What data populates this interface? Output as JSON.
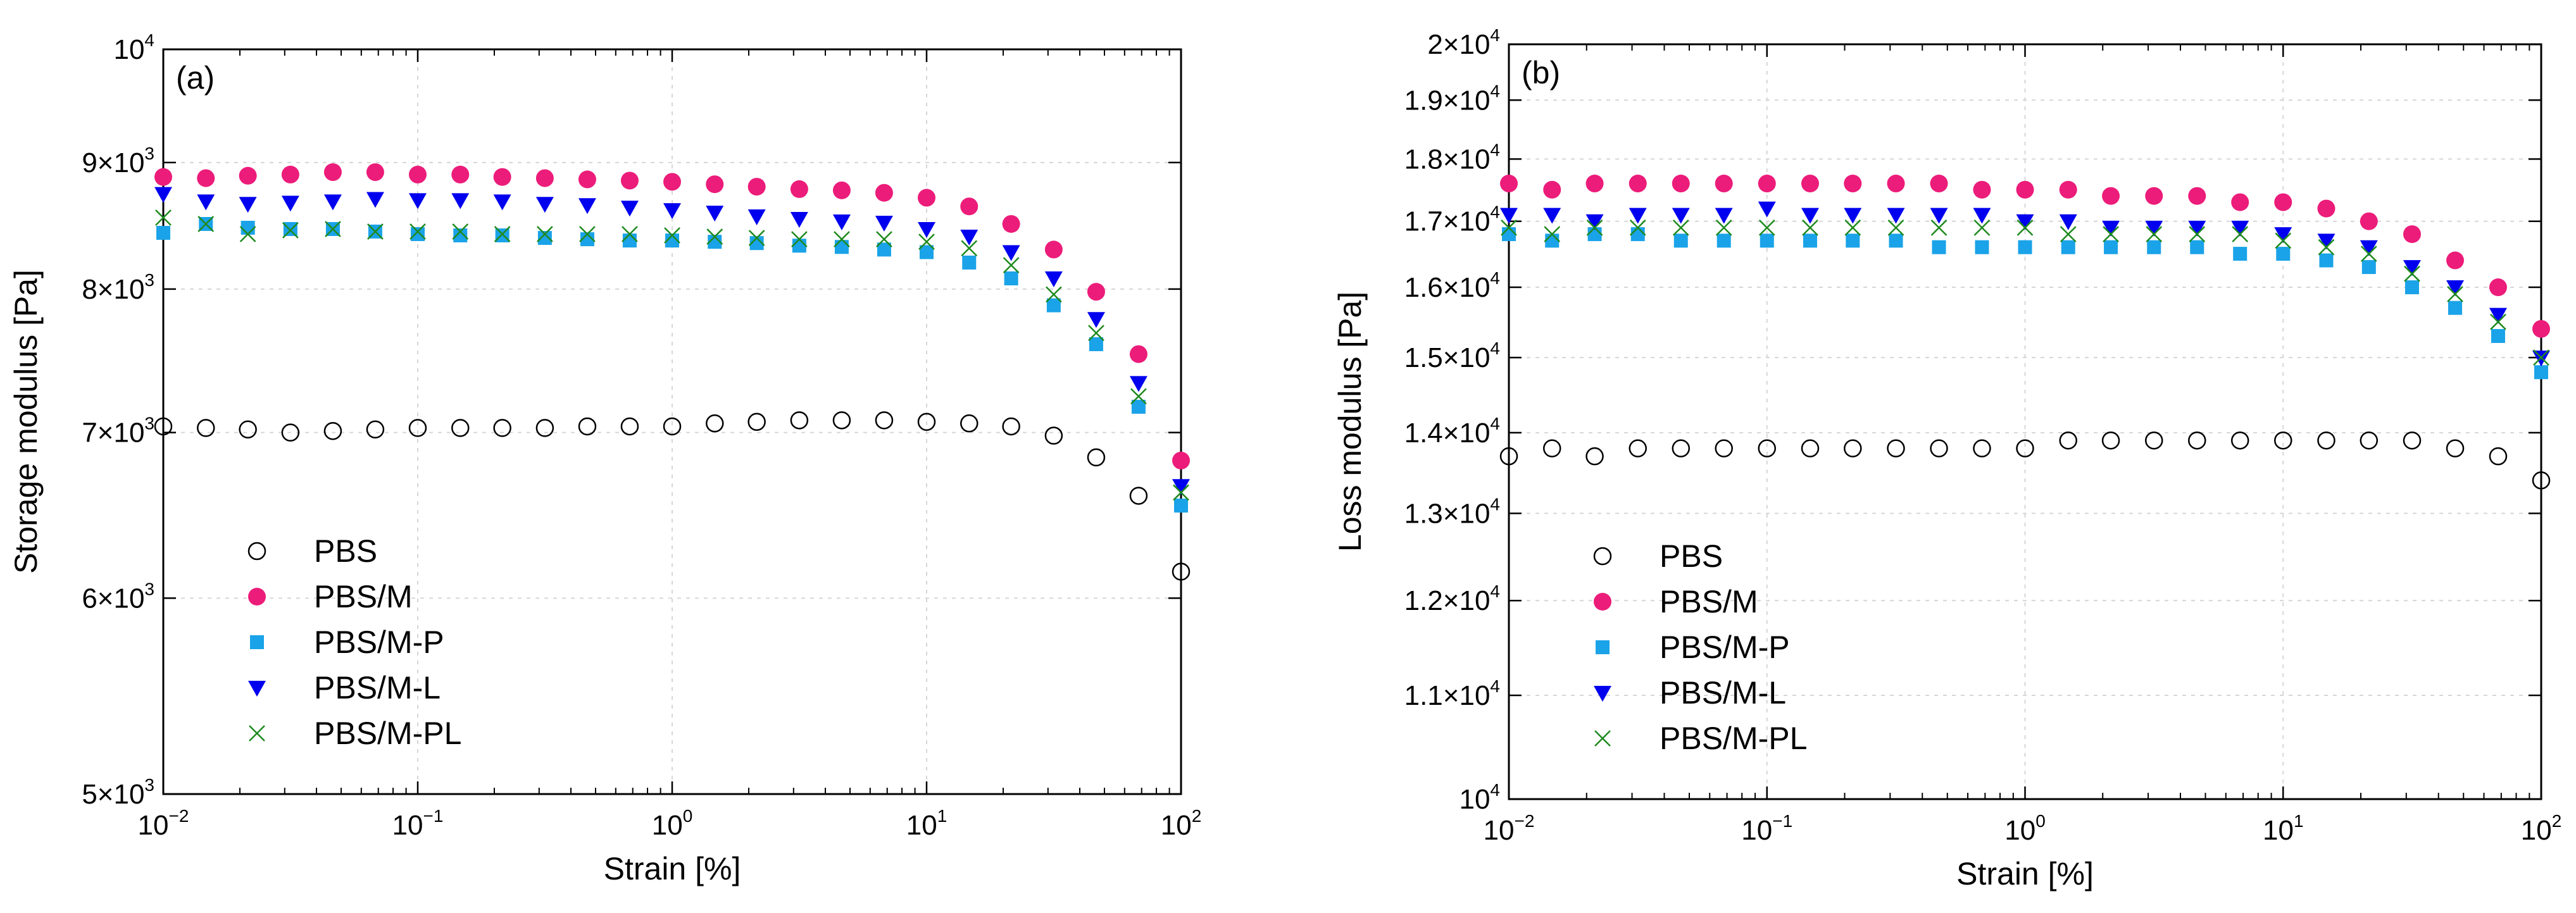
{
  "chart_data": [
    {
      "type": "scatter",
      "panel_label": "(a)",
      "xlabel": "Strain [%]",
      "ylabel": "Storage modulus [Pa]",
      "xscale": "log",
      "yscale": "log",
      "xlim": [
        0.01,
        100
      ],
      "ylim": [
        5000,
        10000
      ],
      "x_ticks": [
        {
          "value": 0.01,
          "base": "10",
          "exp": "−2"
        },
        {
          "value": 0.1,
          "base": "10",
          "exp": "−1"
        },
        {
          "value": 1,
          "base": "10",
          "exp": "0"
        },
        {
          "value": 10,
          "base": "10",
          "exp": "1"
        },
        {
          "value": 100,
          "base": "10",
          "exp": "2"
        }
      ],
      "y_ticks": [
        {
          "value": 5000,
          "base": "5×10",
          "exp": "3"
        },
        {
          "value": 6000,
          "base": "6×10",
          "exp": "3"
        },
        {
          "value": 7000,
          "base": "7×10",
          "exp": "3"
        },
        {
          "value": 8000,
          "base": "8×10",
          "exp": "3"
        },
        {
          "value": 9000,
          "base": "9×10",
          "exp": "3"
        },
        {
          "value": 10000,
          "base": "10",
          "exp": "4"
        }
      ],
      "grid": true,
      "legend_position": "bottom-left",
      "x": [
        0.01,
        0.0147,
        0.0215,
        0.0316,
        0.0464,
        0.0681,
        0.1,
        0.147,
        0.215,
        0.316,
        0.464,
        0.681,
        1,
        1.47,
        2.15,
        3.16,
        4.64,
        6.81,
        10,
        14.7,
        21.5,
        31.6,
        46.4,
        68.1,
        100
      ],
      "series": [
        {
          "name": "PBS",
          "marker": "circle-open",
          "color": "#000000",
          "values": [
            7040,
            7030,
            7020,
            7000,
            7010,
            7020,
            7030,
            7030,
            7030,
            7030,
            7040,
            7040,
            7040,
            7060,
            7070,
            7080,
            7080,
            7080,
            7070,
            7060,
            7040,
            6980,
            6840,
            6600,
            6150
          ]
        },
        {
          "name": "PBS/M",
          "marker": "circle-filled",
          "color": "#ec1c7a",
          "values": [
            8880,
            8870,
            8890,
            8900,
            8920,
            8920,
            8900,
            8900,
            8880,
            8870,
            8860,
            8850,
            8840,
            8820,
            8800,
            8780,
            8770,
            8750,
            8710,
            8640,
            8500,
            8300,
            7980,
            7530,
            6820
          ]
        },
        {
          "name": "PBS/M-P",
          "marker": "square",
          "color": "#1aa3e8",
          "values": [
            8430,
            8500,
            8470,
            8460,
            8460,
            8440,
            8420,
            8410,
            8410,
            8390,
            8380,
            8370,
            8370,
            8360,
            8350,
            8330,
            8320,
            8300,
            8280,
            8200,
            8080,
            7880,
            7600,
            7170,
            6540
          ]
        },
        {
          "name": "PBS/M-L",
          "marker": "triangle-down",
          "color": "#0000ee",
          "values": [
            8740,
            8680,
            8660,
            8670,
            8680,
            8700,
            8690,
            8690,
            8680,
            8660,
            8650,
            8630,
            8610,
            8590,
            8560,
            8540,
            8520,
            8510,
            8460,
            8400,
            8280,
            8080,
            7780,
            7330,
            6660
          ]
        },
        {
          "name": "PBS/M-PL",
          "marker": "x",
          "color": "#1e8a1e",
          "values": [
            8550,
            8500,
            8420,
            8450,
            8460,
            8440,
            8440,
            8440,
            8420,
            8420,
            8420,
            8420,
            8410,
            8400,
            8390,
            8380,
            8380,
            8380,
            8360,
            8310,
            8180,
            7960,
            7680,
            7240,
            6620
          ]
        }
      ]
    },
    {
      "type": "scatter",
      "panel_label": "(b)",
      "xlabel": "Strain [%]",
      "ylabel": "Loss modulus [Pa]",
      "xscale": "log",
      "yscale": "log",
      "xlim": [
        0.01,
        100
      ],
      "ylim": [
        10000,
        20000
      ],
      "x_ticks": [
        {
          "value": 0.01,
          "base": "10",
          "exp": "−2"
        },
        {
          "value": 0.1,
          "base": "10",
          "exp": "−1"
        },
        {
          "value": 1,
          "base": "10",
          "exp": "0"
        },
        {
          "value": 10,
          "base": "10",
          "exp": "1"
        },
        {
          "value": 100,
          "base": "10",
          "exp": "2"
        }
      ],
      "y_ticks": [
        {
          "value": 10000,
          "base": "10",
          "exp": "4"
        },
        {
          "value": 11000,
          "base": "1.1×10",
          "exp": "4"
        },
        {
          "value": 12000,
          "base": "1.2×10",
          "exp": "4"
        },
        {
          "value": 13000,
          "base": "1.3×10",
          "exp": "4"
        },
        {
          "value": 14000,
          "base": "1.4×10",
          "exp": "4"
        },
        {
          "value": 15000,
          "base": "1.5×10",
          "exp": "4"
        },
        {
          "value": 16000,
          "base": "1.6×10",
          "exp": "4"
        },
        {
          "value": 17000,
          "base": "1.7×10",
          "exp": "4"
        },
        {
          "value": 18000,
          "base": "1.8×10",
          "exp": "4"
        },
        {
          "value": 19000,
          "base": "1.9×10",
          "exp": "4"
        },
        {
          "value": 20000,
          "base": "2×10",
          "exp": "4"
        }
      ],
      "grid": true,
      "legend_position": "bottom-left",
      "x": [
        0.01,
        0.0147,
        0.0215,
        0.0316,
        0.0464,
        0.0681,
        0.1,
        0.147,
        0.215,
        0.316,
        0.464,
        0.681,
        1,
        1.47,
        2.15,
        3.16,
        4.64,
        6.81,
        10,
        14.7,
        21.5,
        31.6,
        46.4,
        68.1,
        100
      ],
      "series": [
        {
          "name": "PBS",
          "marker": "circle-open",
          "color": "#000000",
          "values": [
            13700,
            13800,
            13700,
            13800,
            13800,
            13800,
            13800,
            13800,
            13800,
            13800,
            13800,
            13800,
            13800,
            13900,
            13900,
            13900,
            13900,
            13900,
            13900,
            13900,
            13900,
            13900,
            13800,
            13700,
            13400
          ]
        },
        {
          "name": "PBS/M",
          "marker": "circle-filled",
          "color": "#ec1c7a",
          "values": [
            17600,
            17500,
            17600,
            17600,
            17600,
            17600,
            17600,
            17600,
            17600,
            17600,
            17600,
            17500,
            17500,
            17500,
            17400,
            17400,
            17400,
            17300,
            17300,
            17200,
            17000,
            16800,
            16400,
            16000,
            15400
          ]
        },
        {
          "name": "PBS/M-P",
          "marker": "square",
          "color": "#1aa3e8",
          "values": [
            16800,
            16700,
            16800,
            16800,
            16700,
            16700,
            16700,
            16700,
            16700,
            16700,
            16600,
            16600,
            16600,
            16600,
            16600,
            16600,
            16600,
            16500,
            16500,
            16400,
            16300,
            16000,
            15700,
            15300,
            14800
          ]
        },
        {
          "name": "PBS/M-L",
          "marker": "triangle-down",
          "color": "#0000ee",
          "values": [
            17100,
            17100,
            17000,
            17100,
            17100,
            17100,
            17200,
            17100,
            17100,
            17100,
            17100,
            17100,
            17000,
            17000,
            16900,
            16900,
            16900,
            16900,
            16800,
            16700,
            16600,
            16300,
            16000,
            15600,
            15000
          ]
        },
        {
          "name": "PBS/M-PL",
          "marker": "x",
          "color": "#1e8a1e",
          "values": [
            16900,
            16800,
            16900,
            16900,
            16900,
            16900,
            16900,
            16900,
            16900,
            16900,
            16900,
            16900,
            16900,
            16800,
            16800,
            16800,
            16800,
            16800,
            16700,
            16600,
            16500,
            16200,
            15900,
            15500,
            15000
          ]
        }
      ]
    }
  ]
}
